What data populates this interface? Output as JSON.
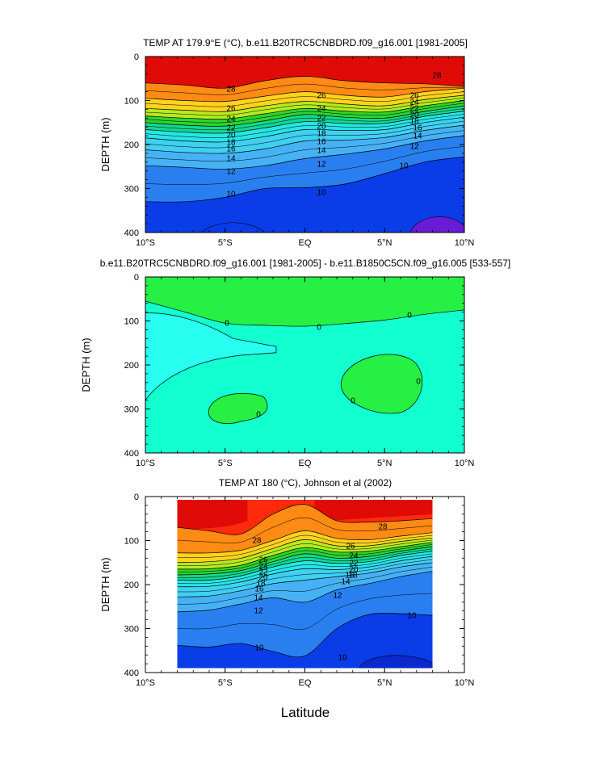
{
  "chart_data": [
    {
      "type": "contour",
      "title": "TEMP AT 179.9°E (°C), b.e11.B20TRC5CNBDRD.f09_g16.001 [1981-2005]",
      "ylabel": "DEPTH (m)",
      "xlim": [
        -10,
        10
      ],
      "ylim": [
        400,
        0
      ],
      "x_ticks": [
        "10°S",
        "5°S",
        "EQ",
        "5°N",
        "10°N"
      ],
      "y_ticks": [
        "0",
        "100",
        "200",
        "300",
        "400"
      ],
      "contour_levels": [
        10,
        12,
        14,
        16,
        18,
        20,
        22,
        24,
        26,
        28
      ],
      "contour_labels": [
        "28",
        "26",
        "24",
        "22",
        "20",
        "18",
        "16",
        "14",
        "12",
        "10",
        "26",
        "24",
        "22",
        "20",
        "18",
        "16",
        "14",
        "12",
        "10",
        "28",
        "26",
        "24",
        "22",
        "20",
        "18",
        "16",
        "14",
        "12",
        "10",
        "10"
      ],
      "isotherm_depths_m": {
        "28": [
          60,
          65,
          72,
          55,
          45,
          55,
          60,
          62,
          68
        ],
        "26": [
          95,
          100,
          102,
          90,
          80,
          88,
          92,
          80,
          72
        ],
        "24": [
          118,
          122,
          125,
          112,
          102,
          108,
          112,
          98,
          88
        ],
        "22": [
          135,
          140,
          142,
          130,
          118,
          124,
          126,
          112,
          100
        ],
        "20": [
          150,
          156,
          158,
          146,
          132,
          138,
          140,
          125,
          112
        ],
        "18": [
          166,
          172,
          174,
          162,
          148,
          152,
          152,
          136,
          124
        ],
        "16": [
          185,
          192,
          194,
          182,
          166,
          168,
          166,
          150,
          138
        ],
        "14": [
          212,
          218,
          220,
          210,
          192,
          190,
          184,
          168,
          156
        ],
        "12": [
          248,
          252,
          256,
          248,
          232,
          222,
          210,
          192,
          180
        ],
        "10": [
          330,
          330,
          320,
          300,
          298,
          290,
          266,
          240,
          228
        ]
      },
      "latitudes_deg": [
        -10,
        -7.5,
        -5,
        -2.5,
        0,
        2.5,
        5,
        7.5,
        10
      ]
    },
    {
      "type": "contour",
      "title": "b.e11.B20TRC5CNBDRD.f09_g16.001 [1981-2005] - b.e11.B1850C5CN.f09_g16.005 [533-557]",
      "ylabel": "DEPTH (m)",
      "xlim": [
        -10,
        10
      ],
      "ylim": [
        400,
        0
      ],
      "x_ticks": [
        "10°S",
        "5°S",
        "EQ",
        "5°N",
        "10°N"
      ],
      "y_ticks": [
        "0",
        "100",
        "200",
        "300",
        "400"
      ],
      "contour_levels": [
        0
      ],
      "contour_labels": [
        "0",
        "0",
        "0",
        "0",
        "0",
        "0"
      ]
    },
    {
      "type": "contour",
      "title": "TEMP AT 180 (°C), Johnson et al (2002)",
      "ylabel": "DEPTH (m)",
      "xlabel": "Latitude",
      "xlim": [
        -10,
        10
      ],
      "ylim": [
        400,
        0
      ],
      "data_xlim": [
        -8,
        8
      ],
      "data_ylim": [
        0,
        390
      ],
      "x_ticks": [
        "10°S",
        "5°S",
        "EQ",
        "5°N",
        "10°N"
      ],
      "y_ticks": [
        "0",
        "100",
        "200",
        "300",
        "400"
      ],
      "contour_levels": [
        10,
        12,
        14,
        16,
        18,
        20,
        22,
        24,
        26,
        28
      ],
      "contour_labels": [
        "28",
        "26",
        "24",
        "22",
        "20",
        "18",
        "16",
        "14",
        "12",
        "10",
        "28",
        "26",
        "24",
        "22",
        "20",
        "18",
        "16",
        "14",
        "12",
        "10",
        "10"
      ],
      "isotherm_depths_m": {
        "28": [
          70,
          78,
          85,
          40,
          18,
          55,
          58,
          55,
          50
        ],
        "26": [
          128,
          128,
          122,
          100,
          78,
          95,
          98,
          90,
          82
        ],
        "24": [
          150,
          148,
          140,
          118,
          98,
          112,
          112,
          102,
          94
        ],
        "22": [
          165,
          164,
          156,
          134,
          116,
          126,
          124,
          114,
          104
        ],
        "20": [
          178,
          176,
          168,
          148,
          130,
          140,
          136,
          124,
          114
        ],
        "18": [
          190,
          190,
          180,
          160,
          146,
          152,
          148,
          134,
          124
        ],
        "16": [
          205,
          204,
          194,
          176,
          164,
          166,
          160,
          146,
          136
        ],
        "14": [
          228,
          226,
          214,
          198,
          190,
          182,
          174,
          160,
          150
        ],
        "12": [
          262,
          258,
          244,
          230,
          240,
          212,
          198,
          182,
          170
        ],
        "10": [
          338,
          342,
          334,
          352,
          362,
          300,
          268,
          266,
          270
        ]
      },
      "latitudes_deg": [
        -8,
        -6,
        -4,
        -2,
        0,
        2,
        4,
        6,
        8
      ]
    }
  ],
  "colors": {
    "t_below_8": "#6a1bd6",
    "t8_10": "#0a3de8",
    "t10_12": "#2a7ff0",
    "t12_14": "#46b2f5",
    "t14_16": "#3fd0f2",
    "t16_18": "#27e5e5",
    "t18_20": "#12d88f",
    "t20_22": "#2dd42d",
    "t22_24": "#b7ea1f",
    "t24_26": "#ffd21e",
    "t26_28": "#ff8a14",
    "t28_plus": "#ff2a0c",
    "t_top": "#e00a06",
    "diff_pos": "#27f044",
    "diff_zero": "#12ffd0",
    "diff_neg": "#28fff0"
  }
}
